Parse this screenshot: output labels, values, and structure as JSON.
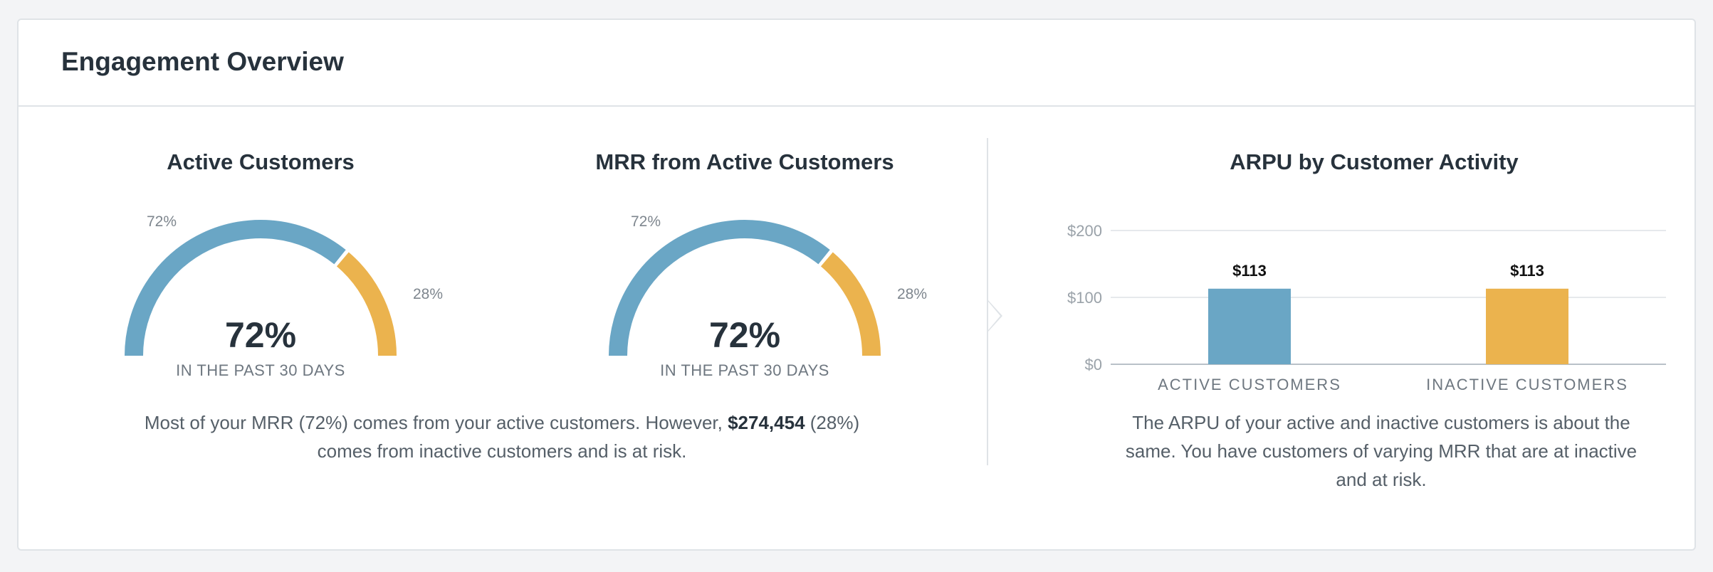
{
  "card": {
    "title": "Engagement Overview"
  },
  "gauges": [
    {
      "title": "Active Customers",
      "value": "72%",
      "subtitle": "IN THE PAST 30 DAYS",
      "active_pct": 72,
      "active_label": "72%",
      "inactive_label": "28%"
    },
    {
      "title": "MRR from Active Customers",
      "value": "72%",
      "subtitle": "IN THE PAST 30 DAYS",
      "active_pct": 72,
      "active_label": "72%",
      "inactive_label": "28%"
    }
  ],
  "summary": {
    "part1": "Most of your MRR (72%) comes from your active customers. However, ",
    "amount": "$274,454",
    "part2": " (28%)",
    "line2": "comes from inactive customers and is at risk."
  },
  "colors": {
    "active": "#6aa6c5",
    "inactive": "#ebb34e",
    "text": "#27323c",
    "muted": "#6e7780",
    "grid": "#e6e9ec"
  },
  "chart_data": {
    "type": "bar",
    "title": "ARPU by Customer Activity",
    "categories": [
      "ACTIVE CUSTOMERS",
      "INACTIVE CUSTOMERS"
    ],
    "values": [
      113,
      113
    ],
    "value_labels": [
      "$113",
      "$113"
    ],
    "yticks": [
      0,
      100,
      200
    ],
    "ytick_labels": [
      "$0",
      "$100",
      "$200"
    ],
    "ylim": [
      0,
      200
    ],
    "grid": true,
    "xlabel": "",
    "ylabel": ""
  },
  "bar_summary": {
    "line1": "The ARPU of your active and inactive customers is about the",
    "line2": "same. You have customers of varying MRR that are at inactive",
    "line3": "and at risk."
  }
}
